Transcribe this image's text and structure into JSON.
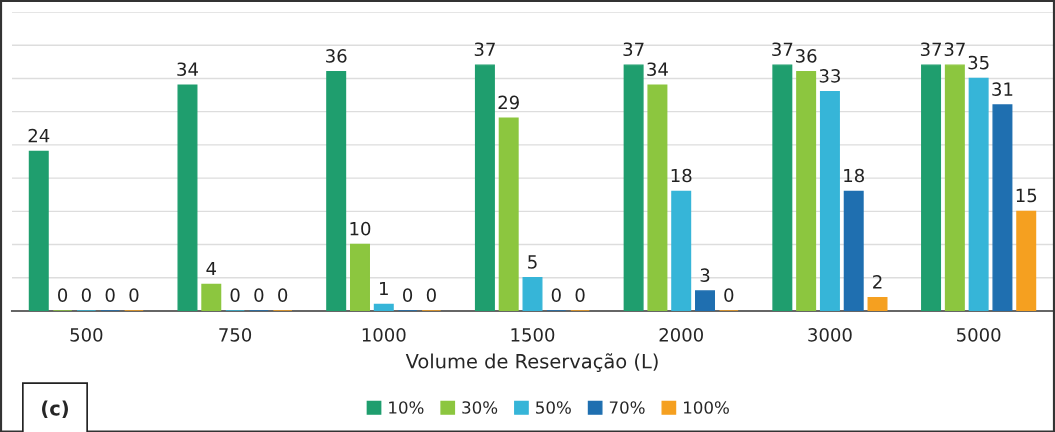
{
  "chart_data": {
    "type": "bar",
    "xlabel": "Volume de Reservação (L)",
    "categories": [
      "500",
      "750",
      "1000",
      "1500",
      "2000",
      "3000",
      "5000"
    ],
    "series": [
      {
        "name": "10%",
        "color": "#1f9e6e",
        "values": [
          24,
          34,
          36,
          37,
          37,
          37,
          37
        ]
      },
      {
        "name": "30%",
        "color": "#8cc63f",
        "values": [
          0,
          4,
          10,
          29,
          34,
          36,
          37
        ]
      },
      {
        "name": "50%",
        "color": "#36b5d8",
        "values": [
          0,
          0,
          1,
          5,
          18,
          33,
          35
        ]
      },
      {
        "name": "70%",
        "color": "#1f6fb0",
        "values": [
          0,
          0,
          0,
          0,
          3,
          18,
          31
        ]
      },
      {
        "name": "100%",
        "color": "#f5a020",
        "values": [
          0,
          0,
          0,
          0,
          0,
          2,
          15
        ]
      }
    ],
    "ylim": [
      0,
      45
    ],
    "yticks": [
      {
        "value": 0,
        "label": null
      },
      {
        "value": 5,
        "label": null
      },
      {
        "value": 10,
        "label": null
      },
      {
        "value": 15,
        "label": null
      },
      {
        "value": 20,
        "label": null
      },
      {
        "value": 25,
        "label": null
      },
      {
        "value": 30,
        "label": null
      },
      {
        "value": 35,
        "label": null
      },
      {
        "value": 40,
        "label": null
      },
      {
        "value": 45,
        "label": null
      }
    ],
    "tick_labels": "x",
    "grid": "y",
    "data_labels": true,
    "legend": "bottom",
    "annotations": [
      "(c)"
    ]
  }
}
